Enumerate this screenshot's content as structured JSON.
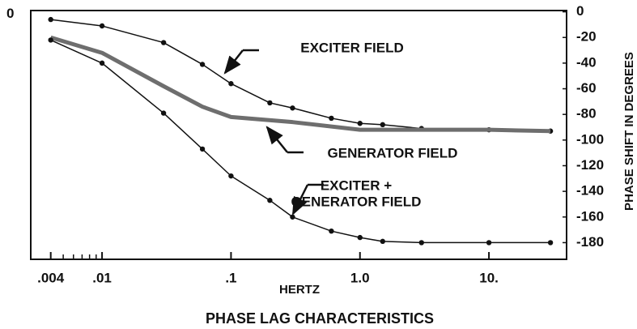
{
  "chart_data": {
    "type": "line",
    "title": "PHASE LAG CHARACTERISTICS",
    "x_label": "HERTZ",
    "y_label": "PHASE SHIFT IN DEGREES",
    "x_scale": "log",
    "xlim": [
      0.0028,
      40
    ],
    "xticks": [
      {
        "value": 0.004,
        "label": ".004"
      },
      {
        "value": 0.01,
        "label": ".01"
      },
      {
        "value": 0.1,
        "label": ".1"
      },
      {
        "value": 1,
        "label": "1.0"
      },
      {
        "value": 10,
        "label": "10."
      }
    ],
    "xminor": [
      0.005,
      0.006,
      0.007,
      0.008,
      0.009
    ],
    "ylim": [
      -193,
      1
    ],
    "yticks": [
      0,
      -20,
      -40,
      -60,
      -80,
      -100,
      -120,
      -140,
      -160,
      -180
    ],
    "yticks_left": [
      0
    ],
    "series": [
      {
        "color": "#111111",
        "width": 1.5,
        "marker": true,
        "x": [
          0.004,
          0.01,
          0.03,
          0.06,
          0.1,
          0.2,
          0.3,
          0.6,
          1,
          1.5,
          3,
          10,
          30
        ],
        "values": [
          -6,
          -11,
          -24,
          -41,
          -56,
          -71,
          -75,
          -83,
          -87,
          -88,
          -91,
          -92,
          -93
        ]
      },
      {
        "color": "#6e6e6e",
        "width": 5,
        "marker": false,
        "x": [
          0.004,
          0.01,
          0.03,
          0.06,
          0.1,
          0.3,
          1,
          3,
          10,
          30
        ],
        "values": [
          -20,
          -32,
          -58,
          -74,
          -82,
          -86,
          -92,
          -92,
          -92,
          -93
        ]
      },
      {
        "color": "#111111",
        "width": 1.5,
        "marker": true,
        "x": [
          0.004,
          0.01,
          0.03,
          0.06,
          0.1,
          0.2,
          0.3,
          0.6,
          1,
          1.5,
          3,
          10,
          30
        ],
        "values": [
          -22,
          -40,
          -79,
          -107,
          -128,
          -147,
          -160,
          -171,
          -176,
          -179,
          -180,
          -180,
          -180
        ]
      }
    ],
    "annotations": [
      {
        "lines": [
          "EXCITER FIELD"
        ]
      },
      {
        "lines": [
          "GENERATOR FIELD"
        ]
      },
      {
        "lines": [
          "EXCITER +",
          "GENERATOR FIELD"
        ]
      }
    ]
  }
}
